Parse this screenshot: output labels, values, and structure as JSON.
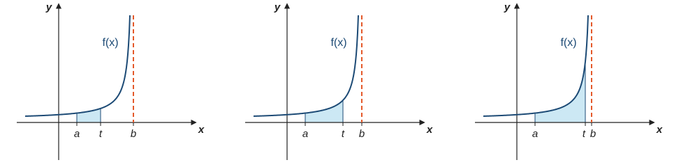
{
  "panels": [
    {
      "y_label": "y",
      "x_label": "x",
      "function_label": "f(x)",
      "a_label": "a",
      "t_label": "t",
      "b_label": "b"
    },
    {
      "y_label": "y",
      "x_label": "x",
      "function_label": "f(x)",
      "a_label": "a",
      "t_label": "t",
      "b_label": "b"
    },
    {
      "y_label": "y",
      "x_label": "x",
      "function_label": "f(x)",
      "a_label": "a",
      "t_label": "t",
      "b_label": "b"
    }
  ]
}
